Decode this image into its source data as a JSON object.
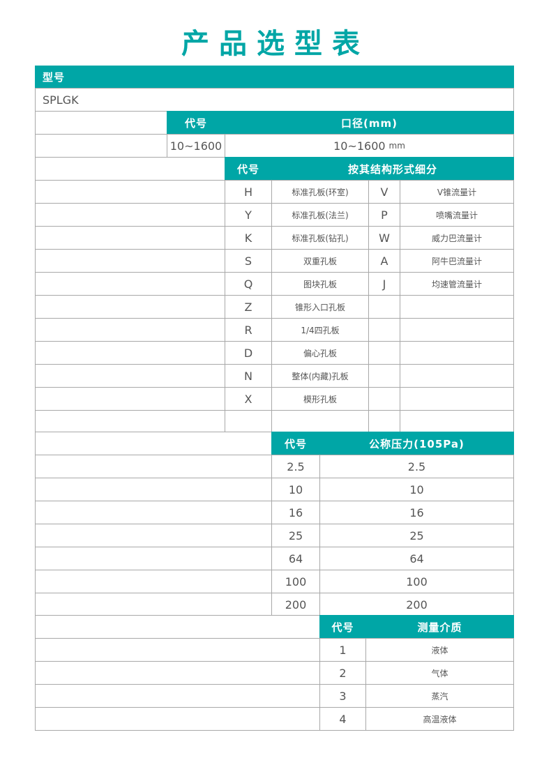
{
  "title": "产品选型表",
  "accent_color": "#00a6a6",
  "model": {
    "header": "型号",
    "value": "SPLGK"
  },
  "diameter": {
    "code_header": "代号",
    "header": "口径(mm)",
    "code": "10~1600",
    "value": "10~1600",
    "unit": "mm"
  },
  "structure": {
    "code_header": "代号",
    "header": "按其结构形式细分",
    "rows": [
      {
        "code": "H",
        "name": "标准孔板(环室)",
        "code2": "V",
        "name2": "V锥流量计"
      },
      {
        "code": "Y",
        "name": "标准孔板(法兰)",
        "code2": "P",
        "name2": "喷嘴流量计"
      },
      {
        "code": "K",
        "name": "标准孔板(钻孔)",
        "code2": "W",
        "name2": "威力巴流量计"
      },
      {
        "code": "S",
        "name": "双重孔板",
        "code2": "A",
        "name2": "阿牛巴流量计"
      },
      {
        "code": "Q",
        "name": "图块孔板",
        "code2": "J",
        "name2": "均速管流量计"
      },
      {
        "code": "Z",
        "name": "锥形入口孔板",
        "code2": "",
        "name2": ""
      },
      {
        "code": "R",
        "name": "1/4四孔板",
        "code2": "",
        "name2": ""
      },
      {
        "code": "D",
        "name": "偏心孔板",
        "code2": "",
        "name2": ""
      },
      {
        "code": "N",
        "name": "整体(内藏)孔板",
        "code2": "",
        "name2": ""
      },
      {
        "code": "X",
        "name": "模形孔板",
        "code2": "",
        "name2": ""
      },
      {
        "code": "",
        "name": "",
        "code2": "",
        "name2": ""
      }
    ]
  },
  "pressure": {
    "code_header": "代号",
    "header": "公称压力(105Pa)",
    "rows": [
      {
        "code": "2.5",
        "value": "2.5"
      },
      {
        "code": "10",
        "value": "10"
      },
      {
        "code": "16",
        "value": "16"
      },
      {
        "code": "25",
        "value": "25"
      },
      {
        "code": "64",
        "value": "64"
      },
      {
        "code": "100",
        "value": "100"
      },
      {
        "code": "200",
        "value": "200"
      }
    ]
  },
  "medium": {
    "code_header": "代号",
    "header": "测量介质",
    "rows": [
      {
        "code": "1",
        "value": "液体"
      },
      {
        "code": "2",
        "value": "气体"
      },
      {
        "code": "3",
        "value": "蒸汽"
      },
      {
        "code": "4",
        "value": "高温液体"
      }
    ]
  }
}
